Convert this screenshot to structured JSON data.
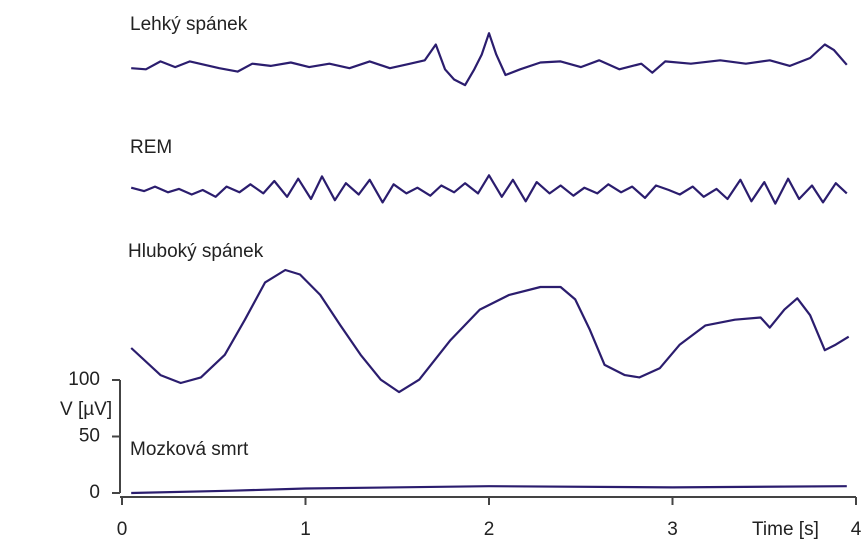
{
  "chart_data": [
    {
      "type": "line",
      "title": "Lehký spánek",
      "color": "#2b1d6e",
      "xlim": [
        0,
        4
      ],
      "ylim": [
        -40,
        40
      ],
      "x": [
        0.05,
        0.13,
        0.21,
        0.29,
        0.37,
        0.45,
        0.53,
        0.63,
        0.71,
        0.81,
        0.92,
        1.02,
        1.13,
        1.24,
        1.35,
        1.46,
        1.57,
        1.65,
        1.71,
        1.76,
        1.81,
        1.87,
        1.92,
        1.96,
        2.0,
        2.04,
        2.09,
        2.17,
        2.28,
        2.39,
        2.5,
        2.6,
        2.71,
        2.83,
        2.89,
        2.96,
        3.1,
        3.26,
        3.4,
        3.53,
        3.64,
        3.75,
        3.83,
        3.88,
        3.95
      ],
      "values": [
        -3,
        -4,
        3,
        -2,
        3,
        0,
        -3,
        -6,
        1,
        -1,
        2,
        -2,
        1,
        -3,
        3,
        -3,
        1,
        4,
        18,
        -4,
        -13,
        -18,
        -4,
        9,
        28,
        9,
        -9,
        -4,
        2,
        3,
        -2,
        4,
        -4,
        1,
        -7,
        3,
        1,
        4,
        1,
        4,
        -1,
        6,
        18,
        13,
        0
      ]
    },
    {
      "type": "line",
      "title": "REM",
      "color": "#2b1d6e",
      "xlim": [
        0,
        4
      ],
      "ylim": [
        -20,
        20
      ],
      "x": [
        0.05,
        0.12,
        0.18,
        0.25,
        0.31,
        0.38,
        0.44,
        0.51,
        0.57,
        0.64,
        0.7,
        0.77,
        0.83,
        0.9,
        0.96,
        1.03,
        1.09,
        1.16,
        1.22,
        1.29,
        1.35,
        1.42,
        1.48,
        1.55,
        1.61,
        1.68,
        1.74,
        1.81,
        1.87,
        1.94,
        2.0,
        2.07,
        2.13,
        2.2,
        2.26,
        2.33,
        2.39,
        2.46,
        2.52,
        2.59,
        2.65,
        2.72,
        2.78,
        2.85,
        2.91,
        2.98,
        3.04,
        3.11,
        3.17,
        3.24,
        3.3,
        3.37,
        3.43,
        3.5,
        3.56,
        3.63,
        3.69,
        3.76,
        3.82,
        3.89,
        3.95
      ],
      "values": [
        2,
        -1,
        3,
        -2,
        1,
        -4,
        0,
        -6,
        3,
        -2,
        5,
        -3,
        8,
        -6,
        10,
        -8,
        12,
        -9,
        6,
        -4,
        9,
        -11,
        5,
        -3,
        2,
        -5,
        4,
        -2,
        6,
        -3,
        13,
        -6,
        9,
        -10,
        7,
        -3,
        4,
        -5,
        2,
        -3,
        5,
        -2,
        3,
        -7,
        4,
        0,
        -4,
        3,
        -6,
        1,
        -8,
        9,
        -10,
        7,
        -12,
        10,
        -8,
        4,
        -11,
        6,
        -3
      ]
    },
    {
      "type": "line",
      "title": "Hluboký spánek",
      "color": "#2b1d6e",
      "xlim": [
        0,
        4
      ],
      "ylim": [
        -70,
        70
      ],
      "x": [
        0.05,
        0.21,
        0.32,
        0.43,
        0.56,
        0.67,
        0.78,
        0.89,
        0.97,
        1.08,
        1.19,
        1.3,
        1.41,
        1.51,
        1.62,
        1.79,
        1.95,
        2.11,
        2.28,
        2.39,
        2.47,
        2.55,
        2.63,
        2.74,
        2.82,
        2.93,
        3.04,
        3.18,
        3.34,
        3.48,
        3.53,
        3.61,
        3.68,
        3.75,
        3.83,
        3.89,
        3.96
      ],
      "values": [
        -16,
        -40,
        -47,
        -42,
        -22,
        9,
        42,
        53,
        49,
        31,
        4,
        -22,
        -44,
        -55,
        -44,
        -9,
        18,
        31,
        38,
        38,
        27,
        0,
        -31,
        -40,
        -42,
        -34,
        -13,
        4,
        9,
        11,
        2,
        18,
        28,
        13,
        -18,
        -13,
        -6
      ]
    },
    {
      "type": "line",
      "title": "Mozková smrt",
      "color": "#2b1d6e",
      "xlim": [
        0,
        4
      ],
      "ylim": [
        0,
        100
      ],
      "xticks": [
        0,
        1,
        2,
        3,
        4
      ],
      "yticks": [
        0,
        50,
        100
      ],
      "xlabel": "Time [s]",
      "ylabel": "V [µV]",
      "x": [
        0.05,
        0.6,
        1,
        2,
        3,
        3.95
      ],
      "values": [
        0,
        2,
        4,
        6,
        5,
        6
      ]
    }
  ]
}
